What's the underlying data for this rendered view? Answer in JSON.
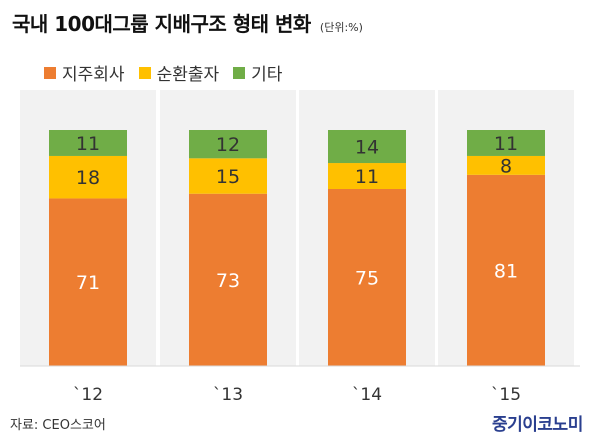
{
  "title": "국내 100대그룹 지배구조 형태 변화",
  "unit": "(단위:%)",
  "source": "자료: CEO스코어",
  "logo": "중기이코노미",
  "colors": {
    "holding": "#ED7D31",
    "cross": "#FFC000",
    "other": "#70AD47",
    "panel": "#F2F2F2",
    "label": "#ffffff",
    "label_dark": "#333333"
  },
  "chart_data": {
    "type": "bar",
    "stacked": true,
    "categories": [
      "`12",
      "`13",
      "`14",
      "`15"
    ],
    "series": [
      {
        "name": "지주회사",
        "values": [
          71,
          73,
          75,
          81
        ],
        "color": "#ED7D31"
      },
      {
        "name": "순환출자",
        "values": [
          18,
          15,
          11,
          8
        ],
        "color": "#FFC000"
      },
      {
        "name": "기타",
        "values": [
          11,
          12,
          14,
          11
        ],
        "color": "#70AD47"
      }
    ],
    "legend_position": "top-left"
  }
}
